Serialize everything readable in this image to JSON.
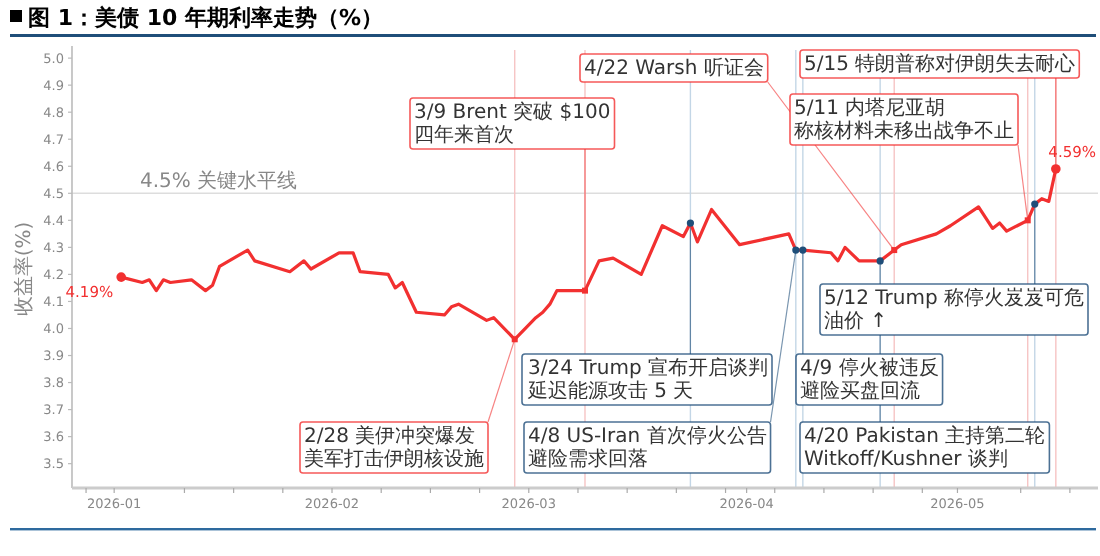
{
  "chart_data": {
    "type": "line",
    "title": "图 1：美债 10 年期利率走势（%）",
    "ylabel": "收益率(%)",
    "xlim": [
      "2025-12-26",
      "2026-05-21"
    ],
    "ylim": [
      3.41,
      5.03
    ],
    "yticks": [
      {
        "value": 3.5,
        "label": "3.5"
      },
      {
        "value": 3.6,
        "label": "3.6"
      },
      {
        "value": 3.7,
        "label": "3.7"
      },
      {
        "value": 3.8,
        "label": "3.8"
      },
      {
        "value": 3.9,
        "label": "3.9"
      },
      {
        "value": 4,
        "label": "4.0"
      },
      {
        "value": 4.1,
        "label": "4.1"
      },
      {
        "value": 4.2,
        "label": "4.2"
      },
      {
        "value": 4.3,
        "label": "4.3"
      },
      {
        "value": 4.4,
        "label": "4.4"
      },
      {
        "value": 4.5,
        "label": "4.5"
      },
      {
        "value": 4.6,
        "label": "4.6"
      },
      {
        "value": 4.7,
        "label": "4.7"
      },
      {
        "value": 4.8,
        "label": "4.8"
      },
      {
        "value": 4.9,
        "label": "4.9"
      },
      {
        "value": 5,
        "label": "5.0"
      }
    ],
    "xticks": [
      {
        "value": "2025-12-28",
        "label": null
      },
      {
        "value": "2026-01-01",
        "label": "2026-01"
      },
      {
        "value": "2026-01-11",
        "label": null
      },
      {
        "value": "2026-01-18",
        "label": null
      },
      {
        "value": "2026-01-25",
        "label": null
      },
      {
        "value": "2026-02-01",
        "label": "2026-02"
      },
      {
        "value": "2026-02-08",
        "label": null
      },
      {
        "value": "2026-02-15",
        "label": null
      },
      {
        "value": "2026-02-22",
        "label": null
      },
      {
        "value": "2026-03-01",
        "label": "2026-03"
      },
      {
        "value": "2026-03-08",
        "label": null
      },
      {
        "value": "2026-03-15",
        "label": null
      },
      {
        "value": "2026-03-22",
        "label": null
      },
      {
        "value": "2026-03-29",
        "label": null
      },
      {
        "value": "2026-04-01",
        "label": "2026-04"
      },
      {
        "value": "2026-04-05",
        "label": null
      },
      {
        "value": "2026-04-12",
        "label": null
      },
      {
        "value": "2026-04-19",
        "label": null
      },
      {
        "value": "2026-04-26",
        "label": null
      },
      {
        "value": "2026-05-01",
        "label": "2026-05"
      },
      {
        "value": "2026-05-10",
        "label": null
      },
      {
        "value": "2026-05-17",
        "label": null
      }
    ],
    "series": [
      {
        "color": "#f23030",
        "x": [
          "2026-01-02",
          "2026-01-05",
          "2026-01-06",
          "2026-01-07",
          "2026-01-08",
          "2026-01-09",
          "2026-01-12",
          "2026-01-14",
          "2026-01-15",
          "2026-01-16",
          "2026-01-20",
          "2026-01-21",
          "2026-01-26",
          "2026-01-28",
          "2026-01-29",
          "2026-02-02",
          "2026-02-04",
          "2026-02-05",
          "2026-02-09",
          "2026-02-10",
          "2026-02-11",
          "2026-02-13",
          "2026-02-17",
          "2026-02-18",
          "2026-02-19",
          "2026-02-23",
          "2026-02-24",
          "2026-02-27",
          "2026-03-02",
          "2026-03-03",
          "2026-03-04",
          "2026-03-05",
          "2026-03-09",
          "2026-03-11",
          "2026-03-13",
          "2026-03-17",
          "2026-03-20",
          "2026-03-23",
          "2026-03-24",
          "2026-03-25",
          "2026-03-27",
          "2026-03-31",
          "2026-04-07",
          "2026-04-08",
          "2026-04-09",
          "2026-04-13",
          "2026-04-14",
          "2026-04-15",
          "2026-04-17",
          "2026-04-20",
          "2026-04-22",
          "2026-04-23",
          "2026-04-28",
          "2026-04-30",
          "2026-05-04",
          "2026-05-06",
          "2026-05-07",
          "2026-05-08",
          "2026-05-11",
          "2026-05-12",
          "2026-05-13",
          "2026-05-14",
          "2026-05-15"
        ],
        "values": [
          4.19,
          4.17,
          4.18,
          4.14,
          4.18,
          4.17,
          4.18,
          4.14,
          4.16,
          4.23,
          4.29,
          4.25,
          4.21,
          4.25,
          4.22,
          4.28,
          4.28,
          4.21,
          4.2,
          4.15,
          4.17,
          4.06,
          4.05,
          4.08,
          4.09,
          4.03,
          4.04,
          3.96,
          4.04,
          4.06,
          4.09,
          4.14,
          4.14,
          4.25,
          4.26,
          4.2,
          4.38,
          4.34,
          4.39,
          4.32,
          4.44,
          4.31,
          4.35,
          4.29,
          4.29,
          4.28,
          4.25,
          4.3,
          4.25,
          4.25,
          4.29,
          4.31,
          4.35,
          4.38,
          4.45,
          4.37,
          4.39,
          4.36,
          4.4,
          4.46,
          4.48,
          4.47,
          4.59
        ],
        "value_labels": [
          "4.19%",
          null,
          null,
          null,
          null,
          null,
          null,
          null,
          null,
          null,
          null,
          null,
          null,
          null,
          null,
          null,
          null,
          null,
          null,
          null,
          null,
          null,
          null,
          null,
          null,
          null,
          null,
          null,
          null,
          null,
          null,
          null,
          null,
          null,
          null,
          null,
          null,
          null,
          null,
          null,
          null,
          null,
          null,
          null,
          null,
          null,
          null,
          null,
          null,
          null,
          null,
          null,
          null,
          null,
          null,
          null,
          null,
          null,
          null,
          null,
          null,
          null,
          "4.59%"
        ]
      },
      {
        "type": "scatter",
        "marker": "square",
        "color": "#f23030",
        "x": [
          "2026-02-27",
          "2026-03-09",
          "2026-04-22",
          "2026-05-11"
        ],
        "values": [
          3.96,
          4.14,
          4.29,
          4.4
        ]
      },
      {
        "type": "scatter",
        "marker": "circle",
        "color": "#1f4e79",
        "x": [
          "2026-03-24",
          "2026-04-08",
          "2026-04-09",
          "2026-04-20",
          "2026-05-12"
        ],
        "values": [
          4.39,
          4.29,
          4.29,
          4.25,
          4.46
        ]
      }
    ],
    "ref_lines": [
      {
        "axis": "y",
        "value": 4.5,
        "label": "4.5% 关键水平线",
        "color": "#dddddd"
      },
      {
        "axis": "x",
        "value": "2026-02-27",
        "color": "#f6c4c4"
      },
      {
        "axis": "x",
        "value": "2026-03-09",
        "color": "#f6c4c4"
      },
      {
        "axis": "x",
        "value": "2026-03-24",
        "color": "#c3d6e6"
      },
      {
        "axis": "x",
        "value": "2026-04-08",
        "color": "#c3d6e6"
      },
      {
        "axis": "x",
        "value": "2026-04-09",
        "color": "#c3d6e6"
      },
      {
        "axis": "x",
        "value": "2026-04-20",
        "color": "#c3d6e6"
      },
      {
        "axis": "x",
        "value": "2026-04-22",
        "color": "#f6c4c4"
      },
      {
        "axis": "x",
        "value": "2026-05-11",
        "color": "#f6c4c4"
      },
      {
        "axis": "x",
        "value": "2026-05-12",
        "color": "#c3d6e6"
      },
      {
        "axis": "x",
        "value": "2026-05-15",
        "color": "#f6c4c4"
      }
    ],
    "annotations": [
      {
        "text": "2/28 美伊冲突爆发美军打击伊朗核设施",
        "x": "2026-02-27",
        "y": 3.96
      },
      {
        "text": "3/9 Brent 突破 $100四年来首次",
        "x": "2026-03-09",
        "y": 4.14
      },
      {
        "text": "3/24 Trump 宣布开启谈判延迟能源攻击 5 天",
        "x": "2026-03-24",
        "y": 4.39
      },
      {
        "text": "4/9 停火被违反避险买盘回流",
        "x": "2026-04-09",
        "y": 4.29
      },
      {
        "text": "4/8 US-Iran 首次停火公告避险需求回落",
        "x": "2026-04-08",
        "y": 4.29
      },
      {
        "text": "4/20 Pakistan 主持第二轮Witkoff/Kushner 谈判",
        "x": "2026-04-20",
        "y": 4.25
      },
      {
        "text": "4/22 Warsh 听证会",
        "x": "2026-04-22",
        "y": 4.29
      },
      {
        "text": "5/11 内塔尼亚胡称核材料未移出战争不止",
        "x": "2026-05-11",
        "y": 4.4
      },
      {
        "text": "5/12 Trump 称停火岌岌可危油价 ↑",
        "x": "2026-05-12",
        "y": 4.46
      },
      {
        "text": "5/15 特朗普称对伊朗失去耐心",
        "x": "2026-05-15",
        "y": 4.59
      }
    ]
  }
}
